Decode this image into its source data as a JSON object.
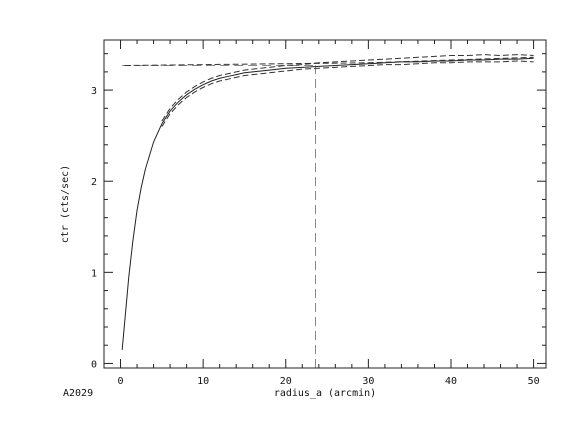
{
  "chart_data": {
    "type": "line",
    "title": "",
    "xlabel": "radius_a (arcmin)",
    "ylabel": "ctr (cts/sec)",
    "corner_label": "A2029",
    "xlim": [
      -2,
      51.5
    ],
    "ylim": [
      -0.05,
      3.55
    ],
    "x_ticks": [
      0,
      10,
      20,
      30,
      40,
      50
    ],
    "y_ticks": [
      0,
      1,
      2,
      3
    ],
    "x_minor_step": 2,
    "y_minor_step": 0.2,
    "grid": false,
    "colors": {
      "axes": "#222222",
      "curve": "#222222",
      "band": "#333333",
      "reference": "#888888"
    },
    "series": [
      {
        "style": "solid",
        "x": [
          0.2,
          0.5,
          1,
          1.5,
          2,
          2.5,
          3,
          4,
          5,
          6,
          7,
          8,
          9,
          10,
          11,
          12,
          13,
          14,
          15,
          16,
          17,
          18,
          20,
          22,
          24,
          26,
          28,
          30,
          32,
          34,
          36,
          38,
          40,
          42,
          44,
          46,
          48,
          50
        ],
        "y": [
          0.15,
          0.45,
          0.95,
          1.35,
          1.68,
          1.93,
          2.13,
          2.43,
          2.63,
          2.77,
          2.87,
          2.95,
          3.01,
          3.06,
          3.1,
          3.13,
          3.15,
          3.17,
          3.19,
          3.2,
          3.21,
          3.22,
          3.24,
          3.25,
          3.26,
          3.27,
          3.28,
          3.29,
          3.3,
          3.31,
          3.31,
          3.32,
          3.32,
          3.33,
          3.33,
          3.34,
          3.34,
          3.35
        ]
      },
      {
        "style": "dashed",
        "x": [
          5,
          6,
          7,
          8,
          9,
          10,
          11,
          12,
          13,
          14,
          15,
          16,
          17,
          18,
          20,
          22,
          24,
          26,
          28,
          30,
          32,
          34,
          36,
          38,
          40,
          42,
          44,
          46,
          48,
          50
        ],
        "y": [
          2.66,
          2.8,
          2.9,
          2.98,
          3.04,
          3.09,
          3.13,
          3.16,
          3.18,
          3.2,
          3.22,
          3.23,
          3.24,
          3.25,
          3.27,
          3.28,
          3.3,
          3.31,
          3.32,
          3.33,
          3.34,
          3.35,
          3.36,
          3.37,
          3.38,
          3.38,
          3.39,
          3.38,
          3.39,
          3.38
        ]
      },
      {
        "style": "dashed",
        "x": [
          5,
          6,
          7,
          8,
          9,
          10,
          11,
          12,
          13,
          14,
          15,
          16,
          17,
          18,
          20,
          22,
          24,
          26,
          28,
          30,
          32,
          34,
          36,
          38,
          40,
          42,
          44,
          46,
          48,
          50
        ],
        "y": [
          2.6,
          2.74,
          2.84,
          2.92,
          2.98,
          3.03,
          3.07,
          3.1,
          3.12,
          3.14,
          3.16,
          3.17,
          3.18,
          3.19,
          3.21,
          3.23,
          3.24,
          3.25,
          3.26,
          3.27,
          3.28,
          3.28,
          3.29,
          3.3,
          3.3,
          3.31,
          3.31,
          3.31,
          3.32,
          3.31
        ]
      },
      {
        "style": "dashed",
        "x": [
          0.5,
          30,
          40,
          50
        ],
        "y": [
          3.27,
          3.3,
          3.33,
          3.36
        ]
      }
    ],
    "reference_lines": [
      {
        "orientation": "horizontal",
        "y": 3.27,
        "x_from": 0.2,
        "x_to": 23.6
      },
      {
        "orientation": "vertical",
        "x": 23.6,
        "y_from": -0.05,
        "y_to": 3.27
      }
    ]
  }
}
